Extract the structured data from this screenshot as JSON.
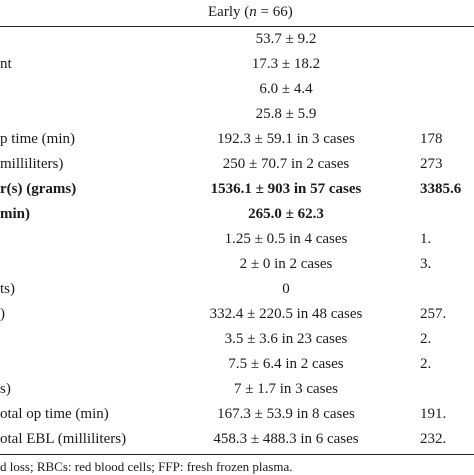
{
  "table": {
    "header": {
      "early_label": "Early (",
      "n_symbol": "n",
      "early_count": " = 66)"
    },
    "rows": [
      {
        "label": "",
        "early": "53.7 ± 9.2",
        "late": "",
        "bold": false
      },
      {
        "label": "nt",
        "early": "17.3 ± 18.2",
        "late": "",
        "bold": false
      },
      {
        "label": "",
        "early": "6.0 ± 4.4",
        "late": "",
        "bold": false
      },
      {
        "label": "",
        "early": "25.8 ± 5.9",
        "late": "",
        "bold": false
      },
      {
        "label": "p time (min)",
        "early": "192.3 ± 59.1 in 3 cases",
        "late": "178",
        "bold": false
      },
      {
        "label": "milliliters)",
        "early": "250 ± 70.7 in 2 cases",
        "late": "273",
        "bold": false
      },
      {
        "label": "r(s) (grams)",
        "early": "1536.1 ± 903 in 57 cases",
        "late": "3385.6",
        "bold": true
      },
      {
        "label": "min)",
        "early": "265.0 ± 62.3",
        "late": "",
        "bold": true
      },
      {
        "label": "",
        "early": "1.25 ± 0.5 in 4 cases",
        "late": "1.",
        "bold": false
      },
      {
        "label": "",
        "early": "2 ± 0 in 2 cases",
        "late": "3.",
        "bold": false
      },
      {
        "label": "ts)",
        "early": "0",
        "late": "",
        "bold": false
      },
      {
        "label": ")",
        "early": "332.4 ± 220.5 in 48 cases",
        "late": "257.",
        "bold": false
      },
      {
        "label": "",
        "early": "3.5 ± 3.6 in 23 cases",
        "late": "2.",
        "bold": false
      },
      {
        "label": "",
        "early": "7.5 ± 6.4 in 2 cases",
        "late": "2.",
        "bold": false
      },
      {
        "label": "s)",
        "early": "7 ± 1.7 in 3 cases",
        "late": "",
        "bold": false
      },
      {
        "label": "otal op time (min)",
        "early": "167.3 ± 53.9 in 8 cases",
        "late": "191.",
        "bold": false
      },
      {
        "label": "otal EBL (milliliters)",
        "early": "458.3 ± 488.3 in 6 cases",
        "late": "232.",
        "bold": false
      }
    ],
    "footnote": "d loss; RBCs: red blood cells; FFP: fresh frozen plasma."
  }
}
